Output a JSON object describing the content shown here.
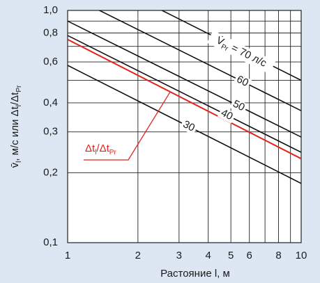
{
  "chart_data": {
    "type": "line",
    "xlog": true,
    "ylog": true,
    "grid": true,
    "xlabel": "Растояние l, м",
    "ylabel": [
      "v̄",
      "l",
      ", м/с или Δt",
      "l",
      "/Δt",
      "Pr"
    ],
    "annotation": {
      "prefix": "V̇",
      "sub": "Pr",
      "eq": " = ",
      "suffix": " л/с"
    },
    "red_label": [
      "Δt",
      "l",
      "/Δt",
      "Pr"
    ],
    "x": [
      1,
      10
    ],
    "series": [
      {
        "name": "70",
        "color": "#111111",
        "values": [
          1.6,
          0.5
        ]
      },
      {
        "name": "60",
        "color": "#111111",
        "values": [
          1.17,
          0.37
        ]
      },
      {
        "name": "50",
        "color": "#111111",
        "values": [
          0.9,
          0.285
        ]
      },
      {
        "name": "40",
        "color": "#111111",
        "values": [
          0.78,
          0.245
        ]
      },
      {
        "name": "30",
        "color": "#111111",
        "values": [
          0.58,
          0.18
        ]
      },
      {
        "color": "#e2231a",
        "values": [
          0.75,
          0.23
        ]
      }
    ],
    "xlim": [
      1,
      10
    ],
    "ylim": [
      0.1,
      1
    ],
    "xticks": [
      1,
      2,
      3,
      4,
      5,
      6,
      8,
      10
    ],
    "xminor": [
      7,
      9
    ],
    "yticks": [
      {
        "value": 0.1,
        "label": "0,1"
      },
      {
        "value": 0.2,
        "label": "0,2"
      },
      {
        "value": 0.3,
        "label": "0,3"
      },
      {
        "value": 0.4,
        "label": "0,4"
      },
      {
        "value": 0.6,
        "label": "0,6"
      },
      {
        "value": 0.8,
        "label": "0,8"
      },
      {
        "value": 1,
        "label": "1,0"
      }
    ],
    "yminor": [
      0.5,
      0.7,
      0.9
    ]
  }
}
